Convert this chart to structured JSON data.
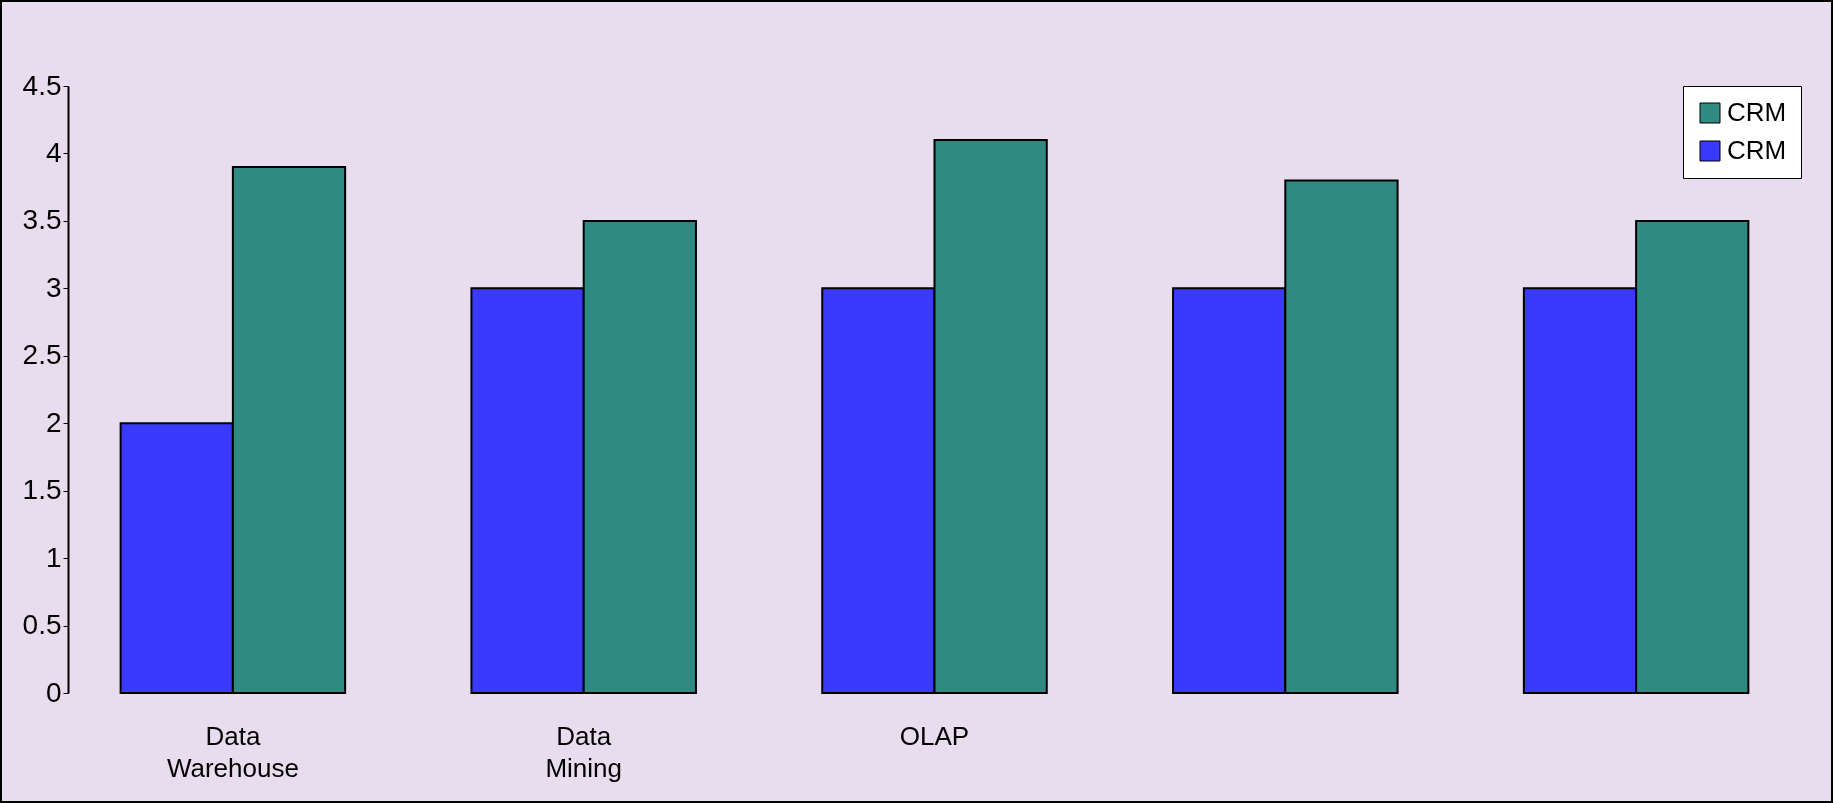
{
  "chart_data": {
    "type": "bar",
    "categories": [
      "Data Warehouse",
      "Data Mining",
      "OLAP",
      null,
      null
    ],
    "series": [
      {
        "name": "CRM",
        "color": "#3a3aff",
        "values": [
          2,
          3,
          3,
          3,
          3
        ]
      },
      {
        "name": "CRM",
        "color": "#2f8a82",
        "values": [
          3.9,
          3.5,
          4.1,
          3.8,
          3.5
        ]
      }
    ],
    "ylim": [
      0,
      4.5
    ],
    "yticks": [
      0,
      0.5,
      1,
      1.5,
      2,
      2.5,
      3,
      3.5,
      4,
      4.5
    ],
    "grid": false,
    "legend": "top right"
  }
}
